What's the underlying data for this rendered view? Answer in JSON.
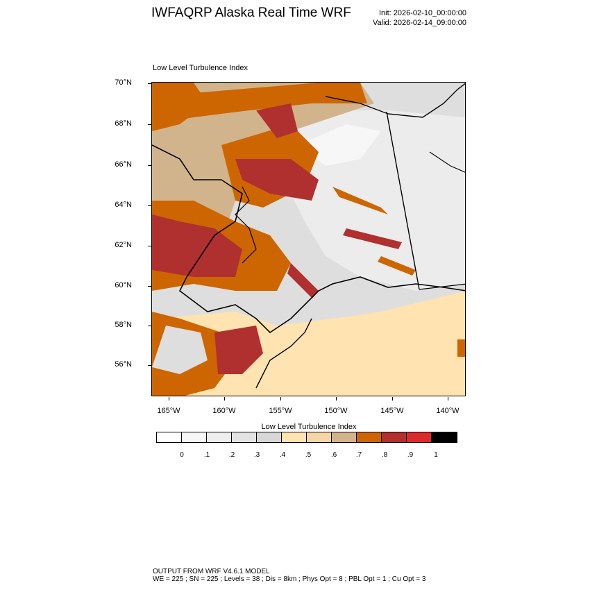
{
  "header": {
    "title": "IWFAQRP Alaska Real Time WRF",
    "init": "Init: 2026-02-10_00:00:00",
    "valid": "Valid: 2026-02-14_09:00:00"
  },
  "panel": {
    "title": "Low Level Turbulence Index"
  },
  "map": {
    "lat_labels": [
      "70°N",
      "68°N",
      "66°N",
      "64°N",
      "62°N",
      "60°N",
      "58°N",
      "56°N"
    ],
    "lon_labels": [
      "165°W",
      "160°W",
      "155°W",
      "150°W",
      "145°W",
      "140°W"
    ]
  },
  "colorbar": {
    "title": "Low Level Turbulence Index",
    "labels": [
      "0",
      ".1",
      ".2",
      ".3",
      ".4",
      ".5",
      ".6",
      ".7",
      ".8",
      ".9",
      "1"
    ],
    "colors": [
      "#ffffff",
      "#f7f7f7",
      "#eeeeee",
      "#e3e3e3",
      "#d7d7d7",
      "#ffe3b0",
      "#f6d6a5",
      "#d2b48c",
      "#cd6600",
      "#b03030",
      "#d92b2b",
      "#000000"
    ]
  },
  "footer": {
    "line1": "OUTPUT FROM WRF V4.6.1 MODEL",
    "line2": "WE = 225 ; SN = 225 ; Levels = 38 ; Dis = 8km ; Phys Opt = 8 ; PBL Opt = 1 ; Cu Opt = 3"
  }
}
